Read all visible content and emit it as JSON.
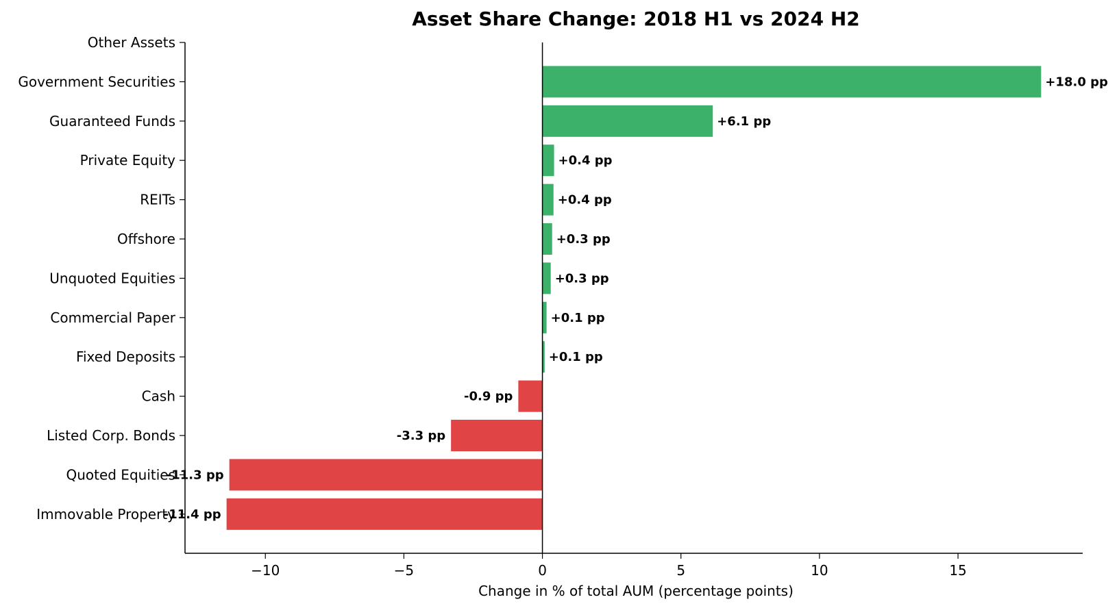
{
  "chart_data": {
    "type": "bar",
    "orientation": "horizontal",
    "title": "Asset Share Change: 2018 H1 vs 2024 H2",
    "xlabel": "Change in % of total AUM (percentage points)",
    "ylabel": "",
    "xlim": [
      -12.9,
      19.5
    ],
    "xticks": [
      -10,
      -5,
      0,
      5,
      10,
      15
    ],
    "xtick_labels": [
      "−10",
      "−5",
      "0",
      "5",
      "10",
      "15"
    ],
    "categories": [
      "Other Assets",
      "Government Securities",
      "Guaranteed Funds",
      "Private Equity",
      "REITs",
      "Offshore",
      "Unquoted Equities",
      "Commercial Paper",
      "Fixed Deposits",
      "Cash",
      "Listed Corp. Bonds",
      "Quoted Equities",
      "Immovable Property"
    ],
    "values": [
      0,
      18.0,
      6.15,
      0.42,
      0.4,
      0.35,
      0.3,
      0.15,
      0.08,
      -0.87,
      -3.3,
      -11.3,
      -11.4
    ],
    "value_labels": [
      "",
      "+18.0 pp",
      "+6.1 pp",
      "+0.4 pp",
      "+0.4 pp",
      "+0.3 pp",
      "+0.3 pp",
      "+0.1 pp",
      "+0.1 pp",
      "-0.9 pp",
      "-3.3 pp",
      "-11.3 pp",
      "-11.4 pp"
    ],
    "colors": {
      "positive": "#3cb169",
      "negative": "#e04444"
    },
    "grid": false,
    "legend": "none"
  }
}
